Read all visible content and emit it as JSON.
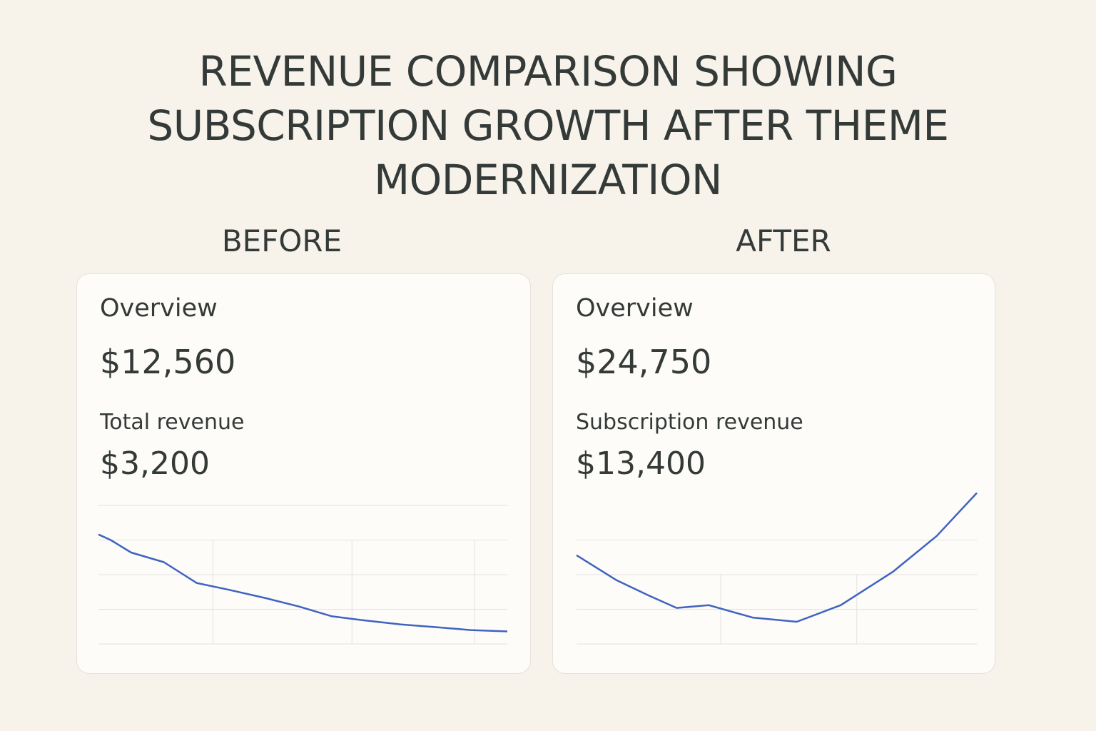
{
  "header": {
    "title": "REVENUE COMPARISON SHOWING SUBSCRIPTION GROWTH AFTER THEME MODERNIZATION"
  },
  "panels": [
    {
      "label": "BEFORE",
      "heading": "Overview",
      "amount": "$12,560",
      "metric_label": "Total revenue",
      "metric_value": "$3,200"
    },
    {
      "label": "AFTER",
      "heading": "Overview",
      "amount": "$24,750",
      "metric_label": "Subscription revenue",
      "metric_value": "$13,400"
    }
  ],
  "chart_data": [
    {
      "type": "line",
      "color": "#3f63c0",
      "x": [
        0,
        3,
        8,
        16,
        24,
        32,
        41,
        49,
        57,
        65,
        74,
        83,
        91,
        100
      ],
      "values": [
        79,
        75,
        66,
        59,
        44,
        39,
        33,
        27,
        20,
        17,
        14,
        12,
        10,
        9
      ],
      "xlim": [
        0,
        100
      ],
      "ylim": [
        0,
        100
      ],
      "xticks": [
        28,
        62,
        92
      ],
      "yticks": [
        0,
        25,
        50,
        75,
        100
      ],
      "grid": true
    },
    {
      "type": "line",
      "color": "#3f63c0",
      "x": [
        0,
        10,
        18,
        25,
        33,
        44,
        55,
        66,
        79,
        90,
        100
      ],
      "values": [
        64,
        46,
        35,
        26,
        28,
        19,
        16,
        28,
        52,
        78,
        109
      ],
      "xlim": [
        0,
        100
      ],
      "ylim": [
        0,
        110
      ],
      "xticks": [
        36,
        70
      ],
      "yticks": [
        0,
        25,
        50,
        75
      ],
      "grid": true
    }
  ]
}
